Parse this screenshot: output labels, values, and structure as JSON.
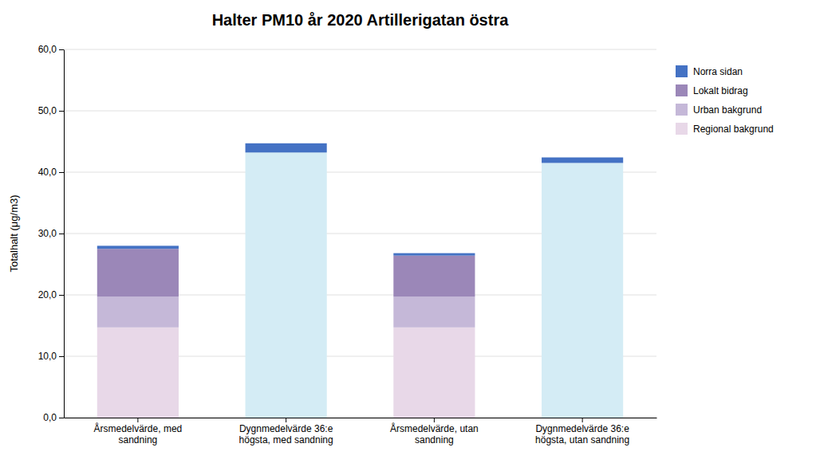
{
  "chart_data": {
    "type": "bar",
    "stacked": true,
    "title": "Halter PM10 år 2020 Artillerigatan östra",
    "ylabel": "Totalhalt (μg/m3)",
    "categories": [
      "Årsmedelvärde, med\nsandning",
      "Dygnmedelvärde 36:e\nhögsta, med sandning",
      "Årsmedelvärde, utan\nsandning",
      "Dygnmedelvärde 36:e\nhögsta, utan sandning"
    ],
    "series": [
      {
        "name": "Regional bakgrund",
        "color": "#e8d8e8",
        "colors": [
          "#e8d8e8",
          "#d4ecf5",
          "#e8d8e8",
          "#d4ecf5"
        ],
        "values": [
          14.7,
          43.2,
          14.7,
          41.5
        ]
      },
      {
        "name": "Urban bakgrund",
        "color": "#c5b8d8",
        "colors": [
          "#c5b8d8",
          "#d4ecf5",
          "#c5b8d8",
          "#d4ecf5"
        ],
        "values": [
          5.0,
          0.0,
          5.0,
          0.0
        ]
      },
      {
        "name": "Lokalt bidrag",
        "color": "#9b87b8",
        "colors": [
          "#9b87b8",
          "#d4ecf5",
          "#9b87b8",
          "#d4ecf5"
        ],
        "values": [
          7.8,
          0.0,
          6.7,
          0.0
        ]
      },
      {
        "name": "Norra sidan",
        "color": "#4472c4",
        "colors": [
          "#4472c4",
          "#4472c4",
          "#4472c4",
          "#4472c4"
        ],
        "values": [
          0.5,
          1.5,
          0.4,
          0.9
        ]
      }
    ],
    "ylim": [
      0,
      60
    ],
    "yticks": [
      {
        "value": 0,
        "label": "0,0"
      },
      {
        "value": 10,
        "label": "10,0"
      },
      {
        "value": 20,
        "label": "20,0"
      },
      {
        "value": 30,
        "label": "30,0"
      },
      {
        "value": 40,
        "label": "40,0"
      },
      {
        "value": 50,
        "label": "50,0"
      },
      {
        "value": 60,
        "label": "60,0"
      }
    ],
    "grid": true,
    "legend": "right"
  }
}
